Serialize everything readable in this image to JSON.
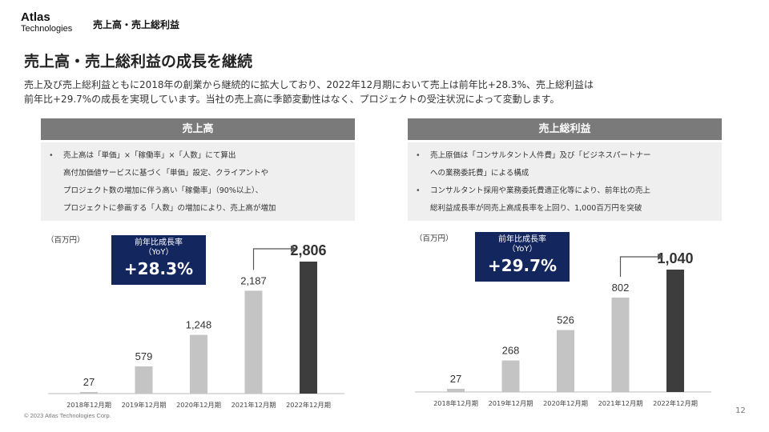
{
  "header": {
    "logo_main": "Atlas",
    "logo_sub": "Technologies",
    "breadcrumb": "売上高・売上総利益"
  },
  "title": "売上高・売上総利益の成長を継続",
  "lead": {
    "line1": "売上及び売上総利益ともに2018年の創業から継続的に拡大しており、2022年12月期において売上は前年比+28.3%、売上総利益は",
    "line2": "前年比+29.7%の成長を実現しています。当社の売上高に季節変動性はなく、プロジェクトの受注状況によって変動します。"
  },
  "panels": [
    {
      "header": "売上高",
      "bullets": [
        "売上高は「単価」×「稼働率」×「人数」にて算出",
        "高付加価値サービスに基づく「単価」設定、クライアントや",
        "プロジェクト数の増加に伴う高い「稼働率」（90%以上）、",
        "プロジェクトに参画する「人数」の増加により、売上高が増加"
      ],
      "unit": "（百万円）",
      "yoy": {
        "title": "前年比成長率",
        "sub": "（YoY）",
        "value": "+28.3%"
      }
    },
    {
      "header": "売上総利益",
      "bullets": [
        "売上原価は「コンサルタント人件費」及び「ビジネスパートナー",
        "への業務委託費」による構成",
        "コンサルタント採用や業務委託費適正化等により、前年比の売上",
        "総利益成長率が同売上高成長率を上回り、1,000百万円を突破"
      ],
      "unit": "（百万円）",
      "yoy": {
        "title": "前年比成長率",
        "sub": "（YoY）",
        "value": "+29.7%"
      }
    }
  ],
  "chart_data": [
    {
      "type": "bar",
      "title": "売上高",
      "ylabel": "百万円",
      "categories": [
        "2018年12月期",
        "2019年12月期",
        "2020年12月期",
        "2021年12月期",
        "2022年12月期"
      ],
      "values": [
        27,
        579,
        1248,
        2187,
        2806
      ],
      "labels": [
        "27",
        "579",
        "1,248",
        "2,187",
        "2,806"
      ],
      "ylim": [
        0,
        3000
      ],
      "highlight_color": "#3d3d3d",
      "bar_color": "#c4c4c4"
    },
    {
      "type": "bar",
      "title": "売上総利益",
      "ylabel": "百万円",
      "categories": [
        "2018年12月期",
        "2019年12月期",
        "2020年12月期",
        "2021年12月期",
        "2022年12月期"
      ],
      "values": [
        27,
        268,
        526,
        802,
        1040
      ],
      "labels": [
        "27",
        "268",
        "526",
        "802",
        "1,040"
      ],
      "ylim": [
        0,
        1150
      ],
      "highlight_color": "#3d3d3d",
      "bar_color": "#c4c4c4"
    }
  ],
  "footer": {
    "copyright": "© 2023 Atlas Technologies Corp.",
    "page": "12"
  }
}
